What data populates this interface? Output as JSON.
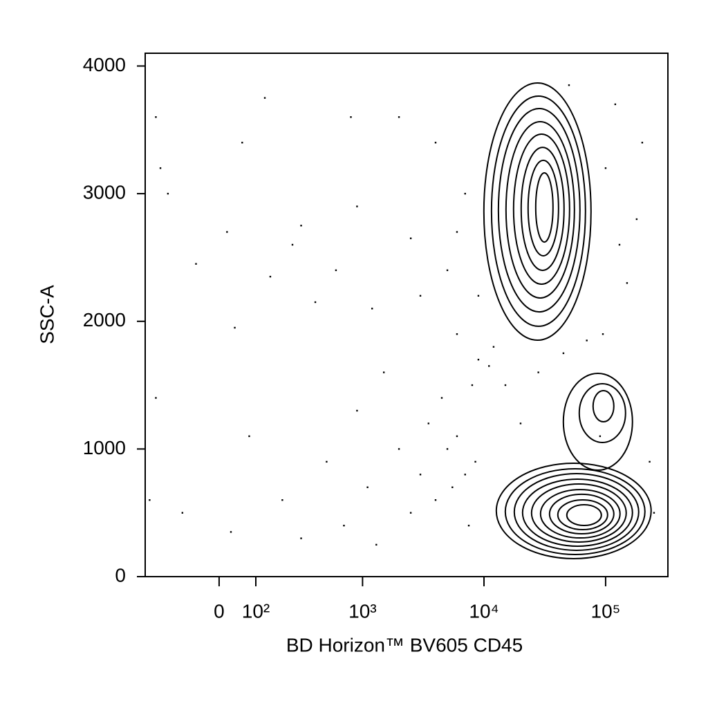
{
  "chart_data": {
    "type": "contour",
    "x_label": "BD Horizon™ BV605 CD45",
    "y_label": "SSC-A",
    "xscale": "biexponential",
    "xlim": [
      -253,
      325000
    ],
    "ylim": [
      0,
      4100
    ],
    "xticks": [
      0,
      {
        "value": 100,
        "label": "10²"
      },
      {
        "value": 1000,
        "label": "10³"
      },
      {
        "value": 10000,
        "label": "10⁴"
      },
      {
        "value": 100000,
        "label": "10⁵"
      }
    ],
    "yticks": [
      0,
      1000,
      2000,
      3000,
      4000
    ],
    "color": "#000000",
    "contours": [
      {
        "x": [
          9980,
          75840
        ],
        "y": [
          1852,
          3867
        ]
      },
      {
        "x": [
          11530,
          68290
        ],
        "y": [
          1961,
          3764
        ]
      },
      {
        "x": [
          13140,
          61500
        ],
        "y": [
          2074,
          3667
        ]
      },
      {
        "x": [
          15170,
          55400
        ],
        "y": [
          2183,
          3564
        ]
      },
      {
        "x": [
          17510,
          50540
        ],
        "y": [
          2291,
          3466
        ]
      },
      {
        "x": [
          20220,
          45520
        ],
        "y": [
          2399,
          3363
        ]
      },
      {
        "x": [
          23050,
          41010
        ],
        "y": [
          2513,
          3261
        ]
      },
      {
        "x": [
          26630,
          36930
        ],
        "y": [
          2621,
          3163
        ]
      },
      {
        "x": [
          12630,
          236600
        ],
        "y": [
          141,
          888
        ]
      },
      {
        "x": [
          14970,
          210400
        ],
        "y": [
          173,
          845
        ]
      },
      {
        "x": [
          17750,
          187000
        ],
        "y": [
          206,
          807
        ]
      },
      {
        "x": [
          20760,
          166200
        ],
        "y": [
          238,
          764
        ]
      },
      {
        "x": [
          24610,
          147700
        ],
        "y": [
          271,
          726
        ]
      },
      {
        "x": [
          29170,
          131300
        ],
        "y": [
          303,
          682
        ]
      },
      {
        "x": [
          34580,
          116800
        ],
        "y": [
          336,
          645
        ]
      },
      {
        "x": [
          40470,
          103800
        ],
        "y": [
          368,
          601
        ]
      },
      {
        "x": [
          47970,
          92260
        ],
        "y": [
          401,
          563
        ]
      },
      {
        "x": [
          44930,
          166200
        ],
        "y": [
          834,
          1592
        ]
      },
      {
        "x": [
          60710,
          145800
        ],
        "y": [
          1051,
          1511
        ]
      },
      {
        "x": [
          78860,
          116800
        ],
        "y": [
          1213,
          1457
        ]
      }
    ],
    "points": {
      "x": [
        -180,
        -150,
        -60,
        20,
        40,
        60,
        130,
        150,
        250,
        300,
        400,
        600,
        800,
        900,
        1200,
        1500,
        2000,
        2500,
        3000,
        4000,
        4500,
        5000,
        6000,
        7000,
        8000,
        -200,
        -100,
        30,
        80,
        200,
        300,
        500,
        700,
        900,
        1100,
        1300,
        2000,
        2500,
        3000,
        3500,
        4000,
        5000,
        6000,
        7000,
        9000,
        11000,
        15000,
        20000,
        28000,
        45000,
        95000,
        150000,
        180000,
        200000,
        120000,
        100000,
        130000,
        50000,
        9000,
        12000,
        6000,
        -230,
        -200,
        70000,
        90000,
        250000,
        230000,
        5500,
        7500,
        8500
      ],
      "y": [
        3200,
        3000,
        2450,
        2700,
        1950,
        3400,
        3750,
        2350,
        2600,
        2750,
        2150,
        2400,
        3600,
        2900,
        2100,
        1600,
        3600,
        2650,
        2200,
        3400,
        1400,
        2400,
        1900,
        3000,
        1500,
        1400,
        500,
        350,
        1100,
        600,
        300,
        900,
        400,
        1300,
        700,
        250,
        1000,
        500,
        800,
        1200,
        600,
        1000,
        1100,
        800,
        1700,
        1650,
        1500,
        1200,
        1600,
        1750,
        1900,
        2300,
        2800,
        3400,
        3700,
        3200,
        2600,
        3850,
        2200,
        1800,
        2700,
        600,
        3600,
        1850,
        1100,
        500,
        900,
        700,
        400,
        900
      ]
    }
  }
}
